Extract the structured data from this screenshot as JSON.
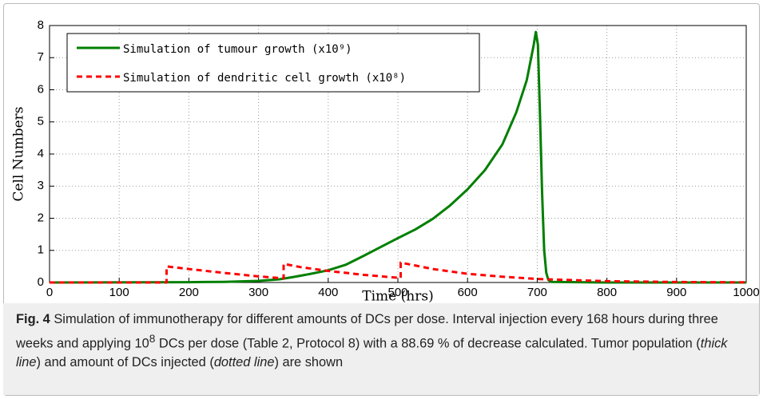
{
  "chart_data": {
    "type": "line",
    "xlabel": "Time (hrs)",
    "ylabel": "Cell Numbers",
    "xlim": [
      0,
      1000
    ],
    "ylim": [
      0,
      8
    ],
    "xticks": [
      0,
      100,
      200,
      300,
      400,
      500,
      600,
      700,
      800,
      900,
      1000
    ],
    "yticks": [
      0,
      1,
      2,
      3,
      4,
      5,
      6,
      7,
      8
    ],
    "grid": true,
    "legend": "upper left",
    "series": [
      {
        "name": "Simulation of tumour growth (x10⁹)",
        "color": "#007f00",
        "style": "solid",
        "x": [
          0,
          200,
          250,
          300,
          330,
          350,
          375,
          400,
          425,
          450,
          475,
          500,
          525,
          550,
          575,
          600,
          625,
          650,
          670,
          685,
          695,
          698,
          701,
          704,
          707,
          710,
          713,
          716,
          720,
          800,
          900,
          1000
        ],
        "values": [
          0,
          0.01,
          0.02,
          0.05,
          0.1,
          0.17,
          0.27,
          0.38,
          0.55,
          0.82,
          1.1,
          1.38,
          1.65,
          1.98,
          2.4,
          2.9,
          3.5,
          4.3,
          5.3,
          6.3,
          7.4,
          7.8,
          7.4,
          5.2,
          2.8,
          1.0,
          0.3,
          0.08,
          0.02,
          0,
          0,
          0
        ]
      },
      {
        "name": "Simulation of dendritic cell growth (x10⁸)",
        "color": "#ff0000",
        "style": "dashed",
        "x": [
          0,
          168,
          168,
          200,
          250,
          300,
          336,
          336,
          360,
          400,
          450,
          504,
          504,
          550,
          600,
          650,
          700,
          800,
          900,
          1000
        ],
        "values": [
          0,
          0,
          0.5,
          0.42,
          0.3,
          0.19,
          0.13,
          0.58,
          0.48,
          0.36,
          0.24,
          0.14,
          0.62,
          0.42,
          0.27,
          0.18,
          0.11,
          0.04,
          0.015,
          0.005
        ]
      }
    ]
  },
  "caption": [
    "Fig. 4",
    "  Simulation of immunotherapy for different amounts of DCs per dose. Interval injection every 168 hours during three weeks and applying 10",
    "8",
    " DCs per dose (Table 2, Protocol 8) with a 88.69 % of decrease calculated. Tumor population (",
    "thick line",
    ") and amount of DCs injected (",
    "dotted line",
    ") are shown"
  ]
}
